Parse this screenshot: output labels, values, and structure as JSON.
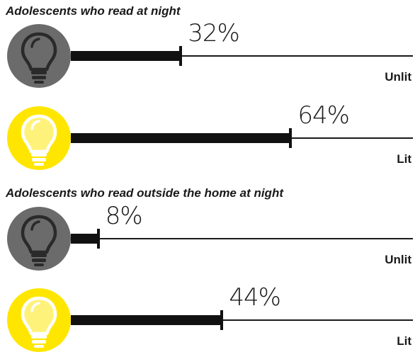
{
  "colors": {
    "unlit_circle": "#6b6b6b",
    "lit_circle": "#ffe600",
    "bar": "#111111",
    "text": "#1a1a1a"
  },
  "icons": {
    "unlit": "lightbulb-icon",
    "lit": "lightbulb-icon"
  },
  "chart_data": [
    {
      "type": "bar",
      "title": "Adolescents who read at night",
      "unit": "%",
      "categories": [
        "Unlit",
        "Lit"
      ],
      "values": [
        32,
        64
      ],
      "value_labels": [
        "32%",
        "64%"
      ],
      "icon_states": [
        "unlit",
        "lit"
      ]
    },
    {
      "type": "bar",
      "title": "Adolescents who read outside the home at night",
      "unit": "%",
      "categories": [
        "Unlit",
        "Lit"
      ],
      "values": [
        8,
        44
      ],
      "value_labels": [
        "8%",
        "44%"
      ],
      "icon_states": [
        "unlit",
        "lit"
      ]
    }
  ]
}
